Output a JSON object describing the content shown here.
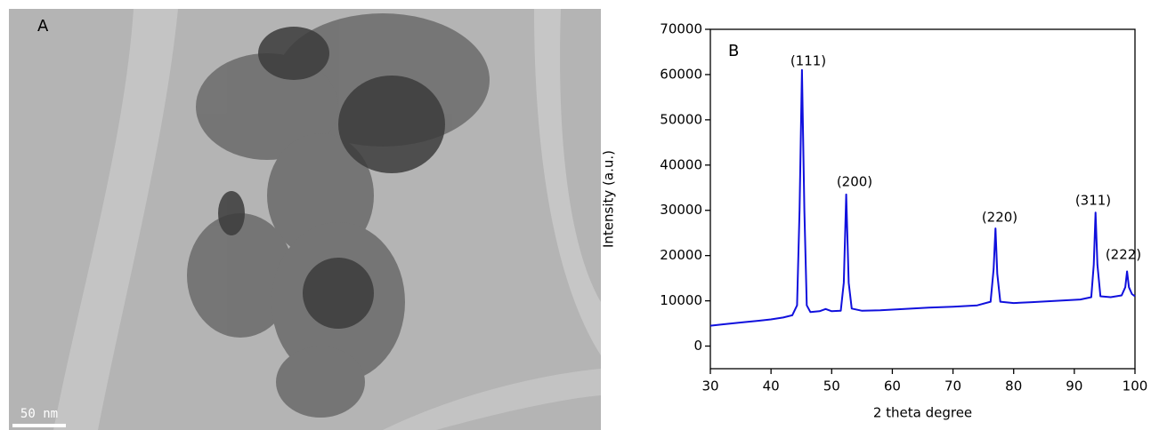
{
  "image_panel": {
    "label": "A",
    "scale_bar": "50 nm"
  },
  "chart_data": {
    "type": "line",
    "panel_label": "B",
    "x_label": "2 theta degree",
    "y_label": "Intensity (a.u.)",
    "color": "#1010dd",
    "xlim": [
      30,
      100
    ],
    "xticks": [
      30,
      40,
      50,
      60,
      70,
      80,
      90,
      100
    ],
    "ylim": [
      -5000,
      70000
    ],
    "yticks": [
      0,
      10000,
      20000,
      30000,
      40000,
      50000,
      60000,
      70000
    ],
    "annotations": [
      "(111)",
      "(200)",
      "(220)",
      "(311)",
      "(222)"
    ],
    "x": [
      30,
      32,
      35,
      38,
      40,
      42,
      43.5,
      44.3,
      44.7,
      45.1,
      45.5,
      45.9,
      46.5,
      48,
      49,
      50,
      51.5,
      52.0,
      52.4,
      52.8,
      53.3,
      55,
      58,
      62,
      66,
      70,
      74,
      76.2,
      76.7,
      77.0,
      77.3,
      77.8,
      80,
      83,
      87,
      91,
      92.8,
      93.2,
      93.5,
      93.8,
      94.3,
      96,
      97.8,
      98.4,
      98.7,
      99.0,
      99.5,
      100
    ],
    "values": [
      4500,
      4800,
      5200,
      5600,
      5900,
      6300,
      6800,
      9000,
      30000,
      61000,
      30000,
      9000,
      7500,
      7700,
      8200,
      7700,
      7800,
      14000,
      33500,
      14000,
      8300,
      7800,
      7900,
      8200,
      8500,
      8700,
      9000,
      9800,
      17000,
      26000,
      16000,
      9800,
      9500,
      9700,
      10000,
      10300,
      10800,
      18000,
      29500,
      18000,
      11000,
      10800,
      11200,
      13000,
      16500,
      13000,
      11500,
      11000
    ]
  }
}
